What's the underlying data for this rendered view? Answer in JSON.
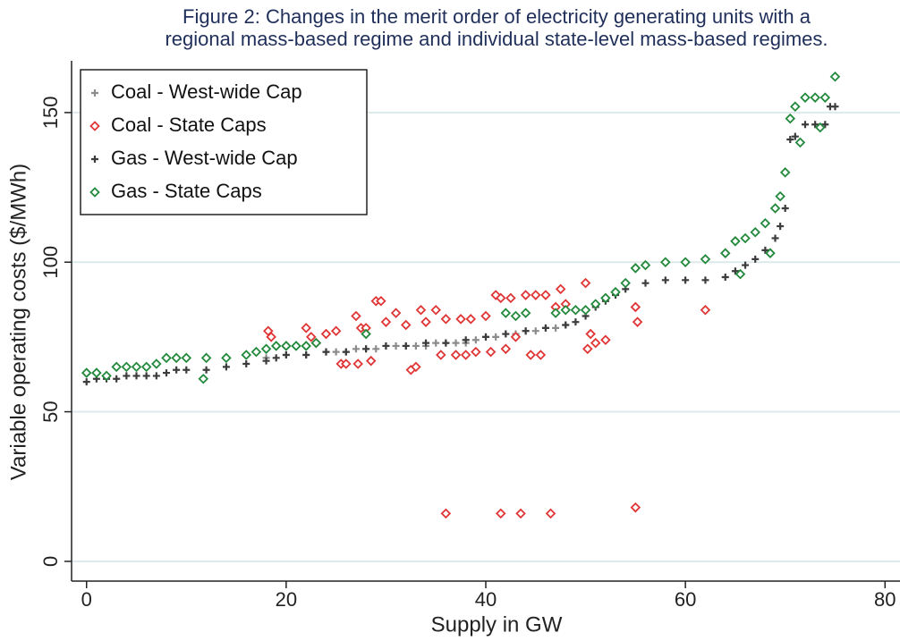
{
  "chart_data": {
    "type": "scatter",
    "title": [
      "Figure 2: Changes in the merit order of electricity generating units with a",
      "regional mass-based regime and individual state-level mass-based regimes."
    ],
    "x_label": "Supply in GW",
    "y_label": "Variable operating costs ($/MWh)",
    "xlim": [
      -1.5,
      81.5
    ],
    "ylim": [
      -6.6,
      167.3
    ],
    "xticks": [
      0,
      20,
      40,
      60,
      80
    ],
    "yticks": [
      0,
      50,
      100,
      150
    ],
    "grid": true,
    "legend": "top-left",
    "series": [
      {
        "name": "Coal - West-wide Cap",
        "color": "#8c8c8c",
        "marker": "plus",
        "x": [
          18,
          20,
          22,
          24,
          25,
          26,
          27,
          28,
          29,
          30,
          31,
          32,
          33,
          34,
          35,
          36,
          37,
          38,
          39,
          40,
          41,
          42,
          43,
          44,
          45,
          46,
          47,
          48
        ],
        "values": [
          68,
          69,
          69,
          70,
          70,
          70,
          71,
          71,
          71,
          72,
          72,
          72,
          72,
          72,
          73,
          73,
          73,
          73,
          74,
          75,
          75,
          76,
          76,
          77,
          77,
          78,
          78,
          79
        ]
      },
      {
        "name": "Coal - State Caps",
        "color": "#e03535",
        "marker": "diamond",
        "x": [
          18.2,
          18.5,
          22,
          22.5,
          23,
          24,
          25,
          25.5,
          26,
          27,
          27.2,
          27.5,
          28,
          28.5,
          29,
          29.5,
          30,
          31,
          32,
          32.5,
          33,
          33.5,
          34,
          35,
          35.5,
          36,
          37,
          37.5,
          38,
          38.5,
          39,
          40,
          40.5,
          41,
          41.5,
          42,
          42.5,
          43,
          44,
          44.5,
          45,
          45.5,
          46,
          47,
          47.5,
          48,
          50,
          50.2,
          50.5,
          51,
          52,
          55,
          55.2,
          62,
          36,
          41.5,
          43.5,
          46.5,
          55
        ],
        "values": [
          77,
          75,
          78,
          75,
          73,
          76,
          77,
          66,
          66,
          82,
          66,
          78,
          78,
          67,
          87,
          87,
          80,
          83,
          79,
          64,
          65,
          84,
          80,
          84,
          69,
          81,
          69,
          81,
          69,
          81,
          70,
          82,
          70,
          89,
          88,
          71,
          88,
          75,
          89,
          69,
          89,
          69,
          89,
          85,
          91,
          86,
          93,
          71,
          76,
          73,
          74,
          85,
          80,
          84,
          16,
          16,
          16,
          16,
          18
        ]
      },
      {
        "name": "Gas - West-wide Cap",
        "color": "#3c3c3c",
        "marker": "plus",
        "x": [
          0,
          1,
          2,
          3,
          4,
          5,
          6,
          7,
          8,
          9,
          10,
          12,
          14,
          16,
          18,
          19,
          20,
          22,
          24,
          26,
          28,
          30,
          32,
          34,
          36,
          38,
          40,
          42,
          44,
          46,
          48,
          49,
          50,
          51,
          52,
          53,
          54,
          56,
          58,
          60,
          62,
          64,
          65,
          66,
          67,
          68,
          69,
          69.5,
          70,
          70.5,
          71,
          72,
          73,
          74,
          74.5,
          75
        ],
        "values": [
          60,
          61,
          61,
          61,
          62,
          62,
          62,
          62,
          63,
          64,
          64,
          64,
          65,
          66,
          67,
          68,
          69,
          69,
          70,
          70,
          71,
          72,
          72,
          73,
          73,
          74,
          75,
          76,
          77,
          78,
          79,
          80,
          82,
          85,
          87,
          89,
          91,
          93,
          94,
          94,
          94,
          95,
          97,
          99,
          101,
          104,
          108,
          112,
          118,
          141,
          142,
          146,
          146,
          146,
          152,
          152
        ]
      },
      {
        "name": "Gas - State Caps",
        "color": "#23893c",
        "marker": "diamond",
        "x": [
          0,
          1,
          2,
          3,
          4,
          5,
          6,
          7,
          8,
          9,
          10,
          11.7,
          12,
          14,
          16,
          17,
          18,
          19,
          20,
          21,
          22,
          23,
          28,
          42,
          43,
          44,
          47,
          48,
          49,
          50,
          51,
          52,
          53,
          54,
          55,
          56,
          58,
          60,
          62,
          64,
          65,
          65.5,
          66,
          67,
          68,
          68.5,
          69,
          69.5,
          70,
          70.5,
          71,
          71.5,
          72,
          73,
          73.5,
          74,
          75
        ],
        "values": [
          63,
          63,
          62,
          65,
          65,
          65,
          65,
          66,
          68,
          68,
          68,
          61,
          68,
          68,
          69,
          70,
          71,
          72,
          72,
          72,
          72,
          73,
          76,
          83,
          82,
          83,
          83,
          84,
          84,
          84,
          86,
          88,
          90,
          93,
          98,
          99,
          100,
          100,
          101,
          103,
          107,
          96,
          108,
          110,
          113,
          103,
          118,
          122,
          130,
          148,
          152,
          140,
          155,
          155,
          145,
          155,
          162
        ]
      }
    ]
  }
}
